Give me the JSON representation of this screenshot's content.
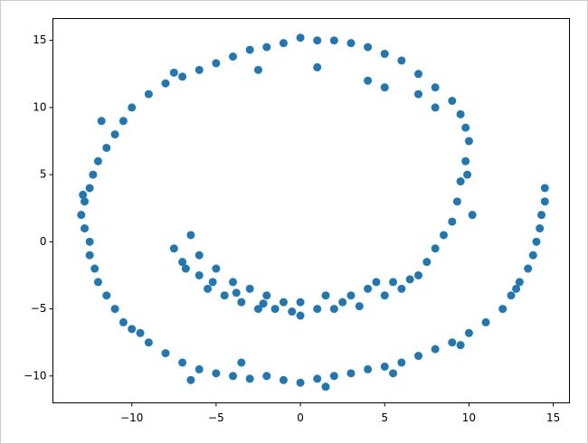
{
  "chart_data": {
    "type": "scatter",
    "color": "#1f77b4",
    "xlim": [
      -14.68,
      15.96
    ],
    "ylim": [
      -12.0,
      16.63
    ],
    "xticks": [
      {
        "value": -10,
        "label": "−10"
      },
      {
        "value": -5,
        "label": "−5"
      },
      0,
      5,
      10,
      15
    ],
    "yticks": [
      {
        "value": -10,
        "label": "−10"
      },
      {
        "value": -5,
        "label": "−5"
      },
      0,
      5,
      10,
      15
    ],
    "x": [
      -7.5,
      -7,
      -6.5,
      -6,
      -6,
      -5.5,
      -5,
      -4.5,
      -4,
      -3.5,
      -3,
      -2.5,
      -2,
      -1.5,
      -1,
      0,
      0,
      1,
      1.5,
      2,
      3,
      3.5,
      4,
      5,
      5.5,
      6,
      7,
      7.5,
      8,
      8.5,
      9,
      9.3,
      9.5,
      9.8,
      10,
      9.8,
      9.5,
      9,
      8,
      7,
      6,
      5,
      4,
      3,
      2,
      1,
      0,
      -1,
      -2,
      -3,
      -4,
      -5,
      -6,
      -7,
      -8,
      -9,
      -10,
      -10.5,
      -11,
      -11.5,
      -12,
      -12.3,
      -12.5,
      -12.8,
      -13,
      -12.8,
      -12.5,
      -12.5,
      -12.2,
      -12,
      -11.5,
      -11,
      -10.5,
      -10,
      -9,
      -8,
      -7,
      -6,
      -5,
      -4,
      -3,
      -2,
      -1,
      0,
      1,
      2,
      3,
      4,
      5,
      6,
      7,
      8,
      9,
      10,
      11,
      12,
      12.5,
      13,
      13.5,
      13.8,
      14,
      14.2,
      14.3,
      14.5,
      14.5,
      1,
      4,
      5,
      7,
      8,
      -6.8,
      -5.2,
      -3.8,
      -2.2,
      -0.5,
      2.5,
      4.5,
      6.5,
      9.9,
      10.2,
      -11.8,
      -12.9,
      -9.5,
      -6.5,
      -3.5,
      1.5,
      5.5,
      9.5,
      12.8,
      -2.5,
      -7.5
    ],
    "values": [
      -0.5,
      -1.5,
      0.5,
      -2.5,
      -1,
      -3.5,
      -2,
      -4,
      -3,
      -4.5,
      -3.5,
      -5,
      -4,
      -5,
      -4.5,
      -5.5,
      -4.5,
      -5,
      -4,
      -5,
      -4,
      -4.8,
      -3.5,
      -4,
      -3,
      -3.5,
      -2.5,
      -1.5,
      -0.5,
      0.5,
      1.5,
      3,
      4.5,
      6,
      7.5,
      8.5,
      9.5,
      10.5,
      11.5,
      12.5,
      13.5,
      14,
      14.5,
      14.8,
      15,
      15,
      15.2,
      14.8,
      14.5,
      14.3,
      13.8,
      13.3,
      12.8,
      12.3,
      11.8,
      11,
      10,
      9,
      8,
      7,
      6,
      5,
      4,
      3,
      2,
      1,
      0,
      -1,
      -2,
      -3,
      -4,
      -5,
      -6,
      -6.5,
      -7.5,
      -8.3,
      -9,
      -9.5,
      -9.8,
      -10,
      -10.2,
      -10,
      -10.3,
      -10.5,
      -10.2,
      -10,
      -9.8,
      -9.5,
      -9.3,
      -9,
      -8.5,
      -8,
      -7.5,
      -6.8,
      -6,
      -5,
      -4,
      -3,
      -2,
      -1,
      0,
      1,
      2,
      3,
      4,
      13,
      12,
      11.5,
      11,
      10,
      -2,
      -3,
      -3.8,
      -4.6,
      -5.2,
      -4.5,
      -3,
      -2.8,
      5,
      2,
      9,
      3.5,
      -6.8,
      -10.3,
      -9,
      -10.8,
      -9.8,
      -7.7,
      -3.5,
      12.8,
      12.6
    ]
  }
}
